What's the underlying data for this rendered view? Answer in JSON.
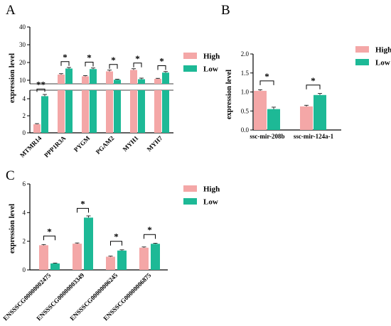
{
  "colors": {
    "high": "#f4a7a7",
    "low": "#1db996",
    "axis": "#000000"
  },
  "chart_data": [
    {
      "panel": "A",
      "type": "bar",
      "categories": [
        "MTMR14",
        "PPP1R3A",
        "PYGM",
        "PGAM2",
        "MYH1",
        "MYH7"
      ],
      "ylabel": "expression level",
      "series": [
        {
          "name": "High",
          "values": [
            1.0,
            13.2,
            12.2,
            15.0,
            15.8,
            10.8
          ],
          "errors": [
            0.08,
            0.5,
            0.4,
            0.7,
            0.7,
            0.3
          ]
        },
        {
          "name": "Low",
          "values": [
            4.3,
            16.6,
            16.3,
            10.3,
            10.6,
            14.3
          ],
          "errors": [
            0.2,
            0.6,
            0.6,
            0.3,
            0.6,
            0.6
          ]
        }
      ],
      "significance": [
        "**",
        "*",
        "*",
        "*",
        "*",
        "*"
      ],
      "broken_axis": true,
      "lower_ylim": [
        0,
        5
      ],
      "lower_ticks": [
        "0",
        "2",
        "4"
      ],
      "upper_ylim": [
        8,
        40
      ],
      "upper_ticks": [
        "10",
        "20",
        "30",
        "40"
      ],
      "legend_position": "right"
    },
    {
      "panel": "B",
      "type": "bar",
      "categories": [
        "ssc-mir-208b",
        "ssc-mir-124a-1"
      ],
      "ylabel": "expression level",
      "ylim": [
        0,
        2.0
      ],
      "yticks": [
        "0.0",
        "0.5",
        "1.0",
        "1.5",
        "2.0"
      ],
      "series": [
        {
          "name": "High",
          "values": [
            1.03,
            0.62
          ],
          "errors": [
            0.03,
            0.03
          ]
        },
        {
          "name": "Low",
          "values": [
            0.55,
            0.92
          ],
          "errors": [
            0.05,
            0.04
          ]
        }
      ],
      "significance": [
        "*",
        "*"
      ],
      "legend_position": "right"
    },
    {
      "panel": "C",
      "type": "bar",
      "categories": [
        "ENSSSCG00000002475",
        "ENSSSCG00000003349",
        "ENSSSCG00000006245",
        "ENSSSCG00000006875"
      ],
      "ylabel": "expression level",
      "ylim": [
        0,
        6
      ],
      "yticks": [
        "0",
        "2",
        "4",
        "6"
      ],
      "series": [
        {
          "name": "High",
          "values": [
            1.72,
            1.83,
            0.92,
            1.55
          ],
          "errors": [
            0.05,
            0.05,
            0.04,
            0.05
          ]
        },
        {
          "name": "Low",
          "values": [
            0.45,
            3.65,
            1.35,
            1.82
          ],
          "errors": [
            0.03,
            0.12,
            0.05,
            0.04
          ]
        }
      ],
      "significance": [
        "*",
        "*",
        "*",
        "*"
      ],
      "legend_position": "right"
    }
  ]
}
